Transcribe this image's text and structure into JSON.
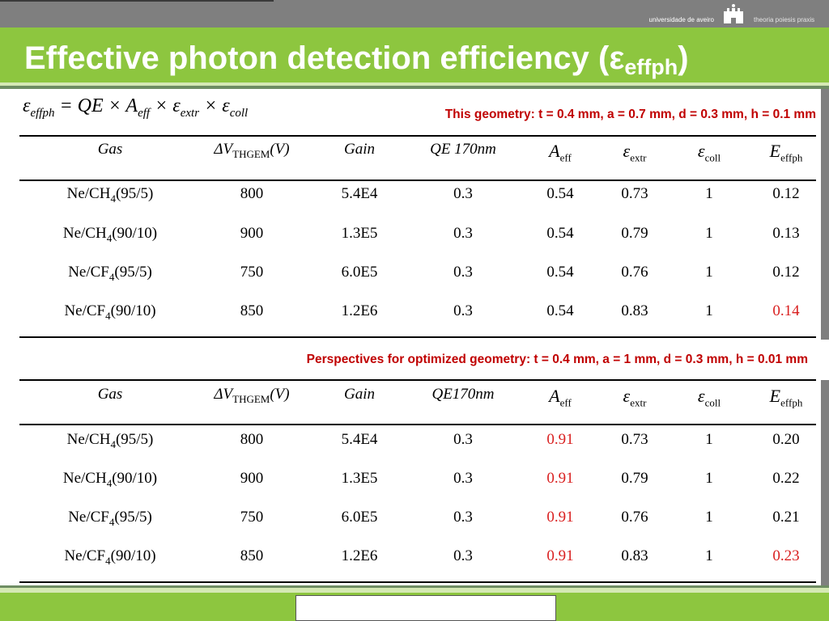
{
  "header": {
    "university": "universidade de aveiro",
    "motto": "theoria poiesis praxis",
    "logo_icon": "castle-icon"
  },
  "slide": {
    "title_main": "Effective photon detection efficiency (ε",
    "title_sub": "effph",
    "title_close": ")"
  },
  "formula": {
    "eps1": "ε",
    "eps1_sub": "effph",
    "eq": " = QE × A",
    "a_sub": "eff",
    "times2": " × ε",
    "extr_sub": "extr",
    "times3": " × ε",
    "coll_sub": "coll"
  },
  "current": {
    "note": "This geometry:  t = 0.4 mm,  a = 0.7 mm, d = 0.3 mm, h = 0.1 mm",
    "headers": {
      "gas": "Gas",
      "dv": "ΔV",
      "dv_sub": "THGEM",
      "dv_unit": "(V)",
      "gain": "Gain",
      "qe": "QE 170nm",
      "a": "A",
      "a_sub": "eff",
      "extr": "ε",
      "extr_sub": "extr",
      "coll": "ε",
      "coll_sub": "coll",
      "e": "E",
      "e_sub": "effph"
    },
    "rows": [
      {
        "gas_pre": "Ne/CH",
        "gas_sub": "4",
        "gas_post": "(95/5)",
        "dv": "800",
        "gain": "5.4E4",
        "qe": "0.3",
        "a": "0.54",
        "extr": "0.73",
        "coll": "1",
        "e": "0.12"
      },
      {
        "gas_pre": "Ne/CH",
        "gas_sub": "4",
        "gas_post": "(90/10)",
        "dv": "900",
        "gain": "1.3E5",
        "qe": "0.3",
        "a": "0.54",
        "extr": "0.79",
        "coll": "1",
        "e": "0.13"
      },
      {
        "gas_pre": "Ne/CF",
        "gas_sub": "4",
        "gas_post": "(95/5)",
        "dv": "750",
        "gain": "6.0E5",
        "qe": "0.3",
        "a": "0.54",
        "extr": "0.76",
        "coll": "1",
        "e": "0.12"
      },
      {
        "gas_pre": "Ne/CF",
        "gas_sub": "4",
        "gas_post": "(90/10)",
        "dv": "850",
        "gain": "1.2E6",
        "qe": "0.3",
        "a": "0.54",
        "extr": "0.83",
        "coll": "1",
        "e": "0.14"
      }
    ]
  },
  "optimized": {
    "note": "Perspectives for optimized geometry:  t = 0.4 mm,  a = 1 mm, d = 0.3 mm, h = 0.01 mm",
    "headers": {
      "gas": "Gas",
      "dv": "ΔV",
      "dv_sub": "THGEM",
      "dv_unit": "(V)",
      "gain": "Gain",
      "qe": "QE170nm",
      "a": "A",
      "a_sub": "eff",
      "extr": "ε",
      "extr_sub": "extr",
      "coll": "ε",
      "coll_sub": "coll",
      "e": "E",
      "e_sub": "effph"
    },
    "rows": [
      {
        "gas_pre": "Ne/CH",
        "gas_sub": "4",
        "gas_post": "(95/5)",
        "dv": "800",
        "gain": "5.4E4",
        "qe": "0.3",
        "a": "0.91",
        "extr": "0.73",
        "coll": "1",
        "e": "0.20"
      },
      {
        "gas_pre": "Ne/CH",
        "gas_sub": "4",
        "gas_post": "(90/10)",
        "dv": "900",
        "gain": "1.3E5",
        "qe": "0.3",
        "a": "0.91",
        "extr": "0.79",
        "coll": "1",
        "e": "0.22"
      },
      {
        "gas_pre": "Ne/CF",
        "gas_sub": "4",
        "gas_post": "(95/5)",
        "dv": "750",
        "gain": "6.0E5",
        "qe": "0.3",
        "a": "0.91",
        "extr": "0.76",
        "coll": "1",
        "e": "0.21"
      },
      {
        "gas_pre": "Ne/CF",
        "gas_sub": "4",
        "gas_post": "(90/10)",
        "dv": "850",
        "gain": "1.2E6",
        "qe": "0.3",
        "a": "0.91",
        "extr": "0.83",
        "coll": "1",
        "e": "0.23"
      }
    ]
  },
  "colors": {
    "accent_green": "#8dc63f",
    "header_gray": "#7f7f7f",
    "highlight_red": "#d91f1f",
    "note_red": "#c00000"
  }
}
